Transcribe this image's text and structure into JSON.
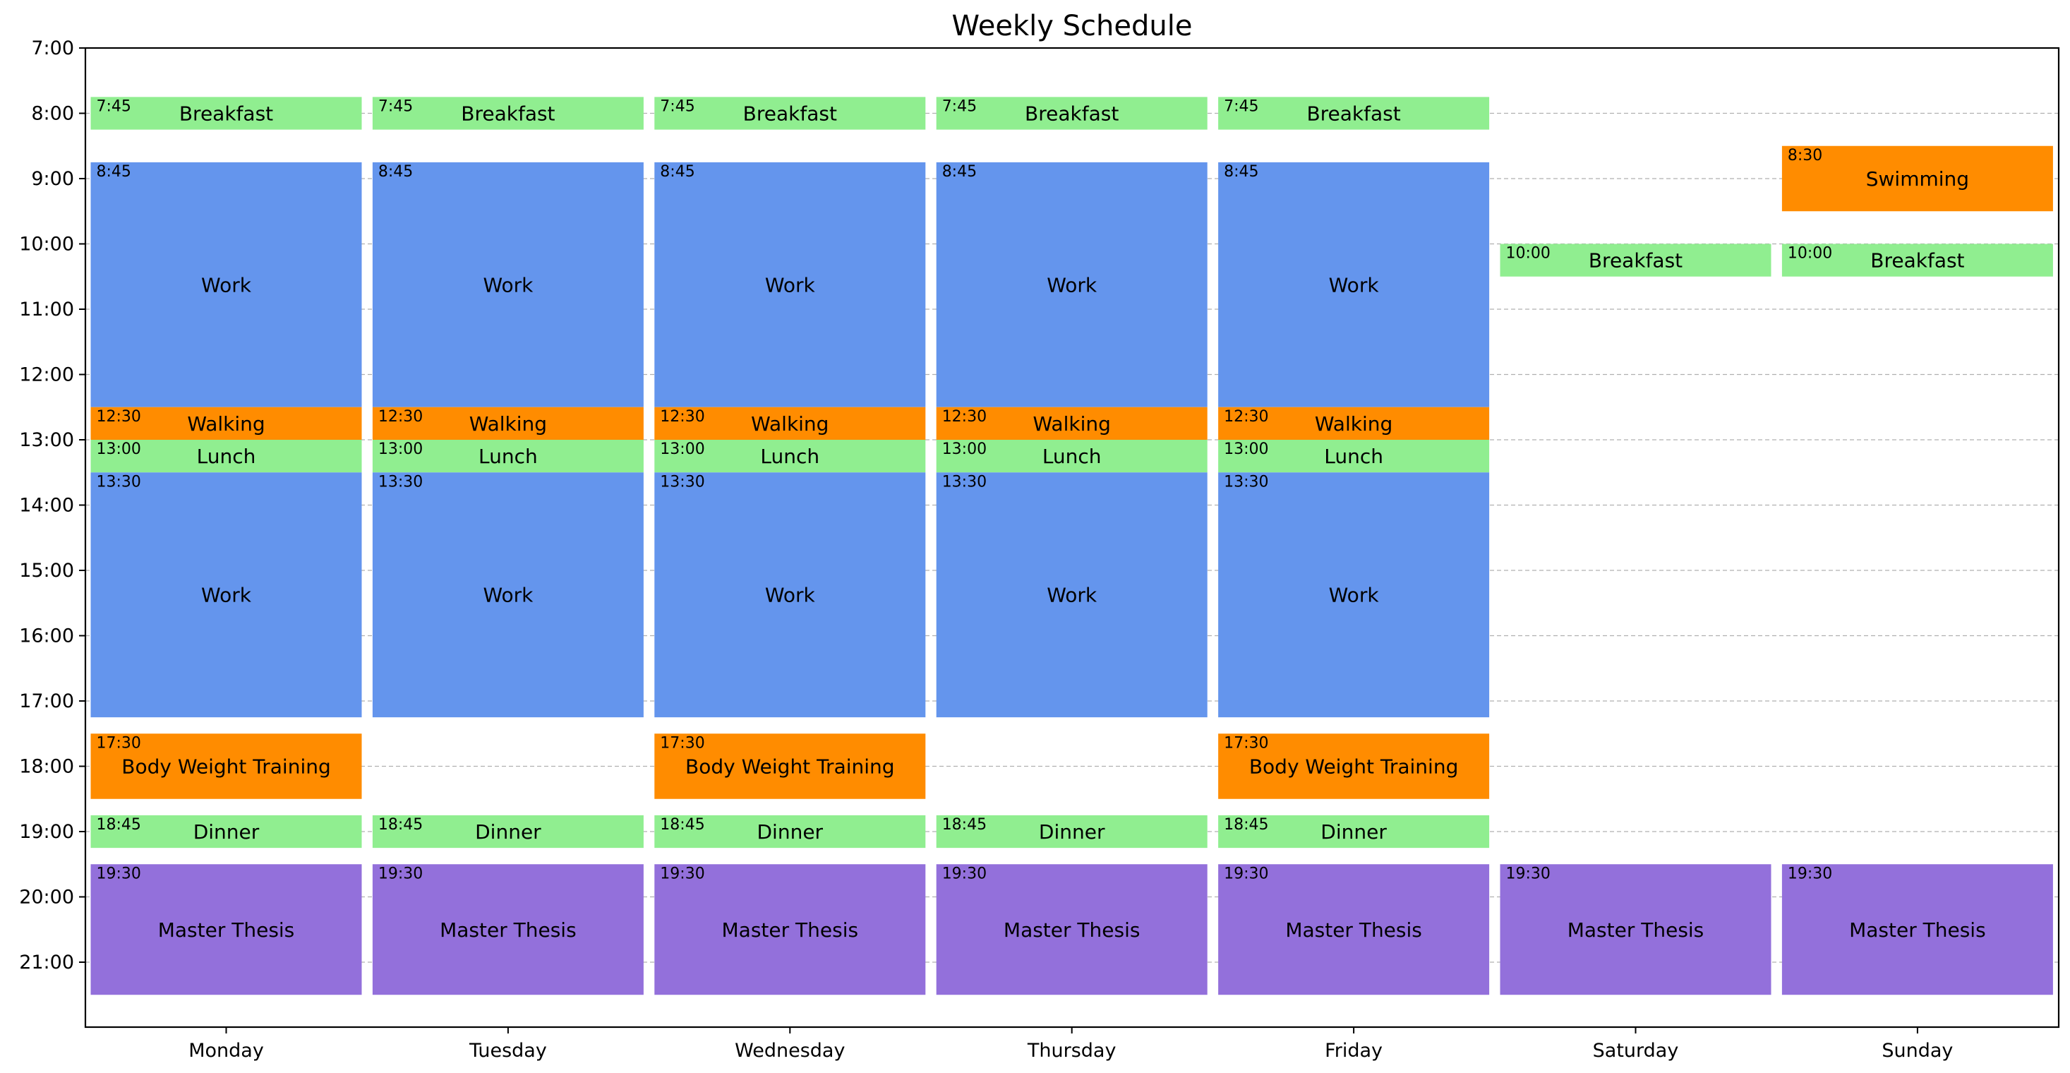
{
  "chart_data": {
    "type": "timeline",
    "title": "Weekly Schedule",
    "days": [
      "Monday",
      "Tuesday",
      "Wednesday",
      "Thursday",
      "Friday",
      "Saturday",
      "Sunday"
    ],
    "y_ticks": [
      "7:00",
      "8:00",
      "9:00",
      "10:00",
      "11:00",
      "12:00",
      "13:00",
      "14:00",
      "15:00",
      "16:00",
      "17:00",
      "18:00",
      "19:00",
      "20:00",
      "21:00"
    ],
    "ylim_hours": [
      7,
      22
    ],
    "grid": "horizontal dashed",
    "categories": {
      "meal": "#90ee90",
      "work": "#6495ed",
      "exercise": "#ff8c00",
      "study": "#9370db"
    },
    "events": [
      {
        "day": "Monday",
        "name": "Breakfast",
        "start": "7:45",
        "start_h": 7.75,
        "end_h": 8.25,
        "category": "meal"
      },
      {
        "day": "Monday",
        "name": "Work",
        "start": "8:45",
        "start_h": 8.75,
        "end_h": 12.5,
        "category": "work"
      },
      {
        "day": "Monday",
        "name": "Walking",
        "start": "12:30",
        "start_h": 12.5,
        "end_h": 13.0,
        "category": "exercise"
      },
      {
        "day": "Monday",
        "name": "Lunch",
        "start": "13:00",
        "start_h": 13.0,
        "end_h": 13.5,
        "category": "meal"
      },
      {
        "day": "Monday",
        "name": "Work",
        "start": "13:30",
        "start_h": 13.5,
        "end_h": 17.25,
        "category": "work"
      },
      {
        "day": "Monday",
        "name": "Body Weight Training",
        "start": "17:30",
        "start_h": 17.5,
        "end_h": 18.5,
        "category": "exercise"
      },
      {
        "day": "Monday",
        "name": "Dinner",
        "start": "18:45",
        "start_h": 18.75,
        "end_h": 19.25,
        "category": "meal"
      },
      {
        "day": "Monday",
        "name": "Master Thesis",
        "start": "19:30",
        "start_h": 19.5,
        "end_h": 21.5,
        "category": "study"
      },
      {
        "day": "Tuesday",
        "name": "Breakfast",
        "start": "7:45",
        "start_h": 7.75,
        "end_h": 8.25,
        "category": "meal"
      },
      {
        "day": "Tuesday",
        "name": "Work",
        "start": "8:45",
        "start_h": 8.75,
        "end_h": 12.5,
        "category": "work"
      },
      {
        "day": "Tuesday",
        "name": "Walking",
        "start": "12:30",
        "start_h": 12.5,
        "end_h": 13.0,
        "category": "exercise"
      },
      {
        "day": "Tuesday",
        "name": "Lunch",
        "start": "13:00",
        "start_h": 13.0,
        "end_h": 13.5,
        "category": "meal"
      },
      {
        "day": "Tuesday",
        "name": "Work",
        "start": "13:30",
        "start_h": 13.5,
        "end_h": 17.25,
        "category": "work"
      },
      {
        "day": "Tuesday",
        "name": "Dinner",
        "start": "18:45",
        "start_h": 18.75,
        "end_h": 19.25,
        "category": "meal"
      },
      {
        "day": "Tuesday",
        "name": "Master Thesis",
        "start": "19:30",
        "start_h": 19.5,
        "end_h": 21.5,
        "category": "study"
      },
      {
        "day": "Wednesday",
        "name": "Breakfast",
        "start": "7:45",
        "start_h": 7.75,
        "end_h": 8.25,
        "category": "meal"
      },
      {
        "day": "Wednesday",
        "name": "Work",
        "start": "8:45",
        "start_h": 8.75,
        "end_h": 12.5,
        "category": "work"
      },
      {
        "day": "Wednesday",
        "name": "Walking",
        "start": "12:30",
        "start_h": 12.5,
        "end_h": 13.0,
        "category": "exercise"
      },
      {
        "day": "Wednesday",
        "name": "Lunch",
        "start": "13:00",
        "start_h": 13.0,
        "end_h": 13.5,
        "category": "meal"
      },
      {
        "day": "Wednesday",
        "name": "Work",
        "start": "13:30",
        "start_h": 13.5,
        "end_h": 17.25,
        "category": "work"
      },
      {
        "day": "Wednesday",
        "name": "Body Weight Training",
        "start": "17:30",
        "start_h": 17.5,
        "end_h": 18.5,
        "category": "exercise"
      },
      {
        "day": "Wednesday",
        "name": "Dinner",
        "start": "18:45",
        "start_h": 18.75,
        "end_h": 19.25,
        "category": "meal"
      },
      {
        "day": "Wednesday",
        "name": "Master Thesis",
        "start": "19:30",
        "start_h": 19.5,
        "end_h": 21.5,
        "category": "study"
      },
      {
        "day": "Thursday",
        "name": "Breakfast",
        "start": "7:45",
        "start_h": 7.75,
        "end_h": 8.25,
        "category": "meal"
      },
      {
        "day": "Thursday",
        "name": "Work",
        "start": "8:45",
        "start_h": 8.75,
        "end_h": 12.5,
        "category": "work"
      },
      {
        "day": "Thursday",
        "name": "Walking",
        "start": "12:30",
        "start_h": 12.5,
        "end_h": 13.0,
        "category": "exercise"
      },
      {
        "day": "Thursday",
        "name": "Lunch",
        "start": "13:00",
        "start_h": 13.0,
        "end_h": 13.5,
        "category": "meal"
      },
      {
        "day": "Thursday",
        "name": "Work",
        "start": "13:30",
        "start_h": 13.5,
        "end_h": 17.25,
        "category": "work"
      },
      {
        "day": "Thursday",
        "name": "Dinner",
        "start": "18:45",
        "start_h": 18.75,
        "end_h": 19.25,
        "category": "meal"
      },
      {
        "day": "Thursday",
        "name": "Master Thesis",
        "start": "19:30",
        "start_h": 19.5,
        "end_h": 21.5,
        "category": "study"
      },
      {
        "day": "Friday",
        "name": "Breakfast",
        "start": "7:45",
        "start_h": 7.75,
        "end_h": 8.25,
        "category": "meal"
      },
      {
        "day": "Friday",
        "name": "Work",
        "start": "8:45",
        "start_h": 8.75,
        "end_h": 12.5,
        "category": "work"
      },
      {
        "day": "Friday",
        "name": "Walking",
        "start": "12:30",
        "start_h": 12.5,
        "end_h": 13.0,
        "category": "exercise"
      },
      {
        "day": "Friday",
        "name": "Lunch",
        "start": "13:00",
        "start_h": 13.0,
        "end_h": 13.5,
        "category": "meal"
      },
      {
        "day": "Friday",
        "name": "Work",
        "start": "13:30",
        "start_h": 13.5,
        "end_h": 17.25,
        "category": "work"
      },
      {
        "day": "Friday",
        "name": "Body Weight Training",
        "start": "17:30",
        "start_h": 17.5,
        "end_h": 18.5,
        "category": "exercise"
      },
      {
        "day": "Friday",
        "name": "Dinner",
        "start": "18:45",
        "start_h": 18.75,
        "end_h": 19.25,
        "category": "meal"
      },
      {
        "day": "Friday",
        "name": "Master Thesis",
        "start": "19:30",
        "start_h": 19.5,
        "end_h": 21.5,
        "category": "study"
      },
      {
        "day": "Saturday",
        "name": "Breakfast",
        "start": "10:00",
        "start_h": 10.0,
        "end_h": 10.5,
        "category": "meal"
      },
      {
        "day": "Saturday",
        "name": "Master Thesis",
        "start": "19:30",
        "start_h": 19.5,
        "end_h": 21.5,
        "category": "study"
      },
      {
        "day": "Sunday",
        "name": "Swimming",
        "start": "8:30",
        "start_h": 8.5,
        "end_h": 9.5,
        "category": "exercise"
      },
      {
        "day": "Sunday",
        "name": "Breakfast",
        "start": "10:00",
        "start_h": 10.0,
        "end_h": 10.5,
        "category": "meal"
      },
      {
        "day": "Sunday",
        "name": "Master Thesis",
        "start": "19:30",
        "start_h": 19.5,
        "end_h": 21.5,
        "category": "study"
      }
    ]
  }
}
